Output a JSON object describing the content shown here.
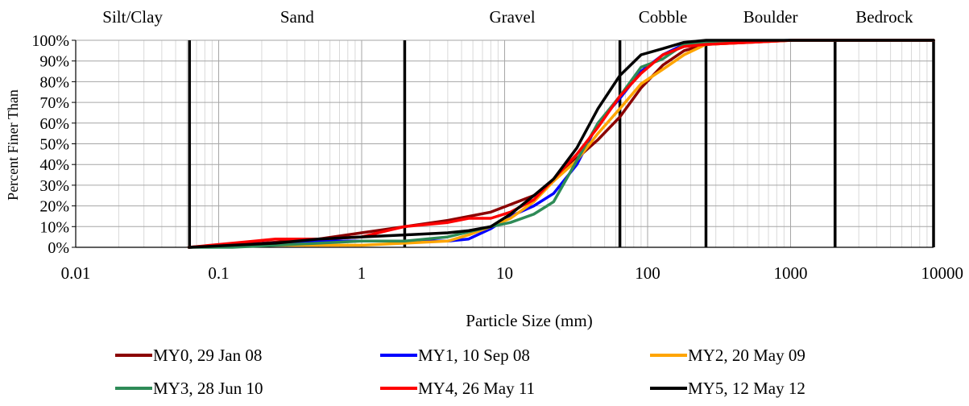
{
  "chart_data": {
    "type": "line",
    "x_scale": "log",
    "xlim": [
      0.01,
      10000
    ],
    "ylim": [
      0,
      100
    ],
    "xlabel": "Particle Size (mm)",
    "ylabel": "Percent Finer Than",
    "x_ticks": [
      "0.01",
      "0.1",
      "1",
      "10",
      "100",
      "1000",
      "10000"
    ],
    "y_ticks": [
      "0%",
      "10%",
      "20%",
      "30%",
      "40%",
      "50%",
      "60%",
      "70%",
      "80%",
      "90%",
      "100%"
    ],
    "grid": true,
    "legend_position": "bottom",
    "class_boundaries_mm": [
      0.0625,
      2,
      64,
      256,
      2048,
      10000
    ],
    "size_classes": [
      {
        "label": "Silt/Clay",
        "from": 0.01,
        "to": 0.0625
      },
      {
        "label": "Sand",
        "from": 0.0625,
        "to": 2
      },
      {
        "label": "Gravel",
        "from": 2,
        "to": 64
      },
      {
        "label": "Cobble",
        "from": 64,
        "to": 256
      },
      {
        "label": "Boulder",
        "from": 256,
        "to": 2048
      },
      {
        "label": "Bedrock",
        "from": 2048,
        "to": 10000
      }
    ],
    "series": [
      {
        "name": "MY0, 29 Jan 08",
        "color": "#8B0000",
        "points": [
          [
            0.062,
            0
          ],
          [
            0.1,
            1
          ],
          [
            0.2,
            2
          ],
          [
            0.5,
            4
          ],
          [
            1,
            7
          ],
          [
            2,
            10
          ],
          [
            4,
            13
          ],
          [
            8,
            17
          ],
          [
            16,
            25
          ],
          [
            22,
            32
          ],
          [
            32,
            43
          ],
          [
            45,
            52
          ],
          [
            64,
            63
          ],
          [
            90,
            77
          ],
          [
            128,
            88
          ],
          [
            180,
            95
          ],
          [
            256,
            98
          ],
          [
            512,
            99
          ],
          [
            1024,
            100
          ],
          [
            10000,
            100
          ]
        ]
      },
      {
        "name": "MY1, 10 Sep 08",
        "color": "#0000FF",
        "points": [
          [
            0.062,
            0
          ],
          [
            0.125,
            1
          ],
          [
            0.25,
            2
          ],
          [
            0.5,
            3
          ],
          [
            1,
            3
          ],
          [
            2,
            3
          ],
          [
            4,
            3
          ],
          [
            5.6,
            4
          ],
          [
            8,
            9
          ],
          [
            11,
            15
          ],
          [
            16,
            20
          ],
          [
            22,
            26
          ],
          [
            32,
            40
          ],
          [
            45,
            60
          ],
          [
            64,
            72
          ],
          [
            90,
            85
          ],
          [
            128,
            93
          ],
          [
            180,
            98
          ],
          [
            256,
            99
          ],
          [
            1024,
            100
          ],
          [
            10000,
            100
          ]
        ]
      },
      {
        "name": "MY2, 20 May 09",
        "color": "#FFA500",
        "points": [
          [
            0.062,
            0
          ],
          [
            0.125,
            1
          ],
          [
            0.25,
            1
          ],
          [
            0.5,
            1
          ],
          [
            1,
            1
          ],
          [
            2,
            2
          ],
          [
            4,
            3
          ],
          [
            5.6,
            6
          ],
          [
            8,
            10
          ],
          [
            11,
            14
          ],
          [
            16,
            22
          ],
          [
            22,
            32
          ],
          [
            32,
            42
          ],
          [
            45,
            55
          ],
          [
            64,
            67
          ],
          [
            90,
            79
          ],
          [
            128,
            86
          ],
          [
            180,
            93
          ],
          [
            256,
            98
          ],
          [
            512,
            99
          ],
          [
            1024,
            100
          ],
          [
            10000,
            100
          ]
        ]
      },
      {
        "name": "MY3, 28 Jun 10",
        "color": "#2E8B57",
        "points": [
          [
            0.062,
            0
          ],
          [
            0.125,
            0
          ],
          [
            0.25,
            1
          ],
          [
            0.5,
            2
          ],
          [
            1,
            3
          ],
          [
            2,
            3
          ],
          [
            4,
            5
          ],
          [
            8,
            10
          ],
          [
            11,
            12
          ],
          [
            16,
            16
          ],
          [
            22,
            22
          ],
          [
            32,
            42
          ],
          [
            45,
            60
          ],
          [
            64,
            73
          ],
          [
            90,
            87
          ],
          [
            128,
            91
          ],
          [
            180,
            98
          ],
          [
            256,
            99
          ],
          [
            1024,
            100
          ],
          [
            10000,
            100
          ]
        ]
      },
      {
        "name": "MY4, 26 May 11",
        "color": "#FF0000",
        "points": [
          [
            0.062,
            0
          ],
          [
            0.125,
            2
          ],
          [
            0.25,
            4
          ],
          [
            0.5,
            4
          ],
          [
            1,
            5
          ],
          [
            1.5,
            8
          ],
          [
            2,
            10
          ],
          [
            4,
            12
          ],
          [
            5.6,
            14
          ],
          [
            8,
            14
          ],
          [
            11,
            17
          ],
          [
            16,
            23
          ],
          [
            22,
            33
          ],
          [
            32,
            45
          ],
          [
            45,
            58
          ],
          [
            64,
            73
          ],
          [
            90,
            84
          ],
          [
            128,
            93
          ],
          [
            180,
            97
          ],
          [
            256,
            98
          ],
          [
            512,
            99
          ],
          [
            1024,
            100
          ],
          [
            10000,
            100
          ]
        ]
      },
      {
        "name": "MY5, 12 May 12",
        "color": "#000000",
        "points": [
          [
            0.062,
            0
          ],
          [
            0.125,
            1
          ],
          [
            0.25,
            2
          ],
          [
            0.5,
            4
          ],
          [
            1,
            5
          ],
          [
            2,
            6
          ],
          [
            4,
            7
          ],
          [
            5.6,
            8
          ],
          [
            8,
            10
          ],
          [
            11,
            16
          ],
          [
            16,
            25
          ],
          [
            22,
            33
          ],
          [
            32,
            48
          ],
          [
            45,
            67
          ],
          [
            64,
            83
          ],
          [
            90,
            93
          ],
          [
            128,
            96
          ],
          [
            180,
            99
          ],
          [
            256,
            100
          ],
          [
            1024,
            100
          ],
          [
            10000,
            100
          ]
        ]
      }
    ]
  }
}
